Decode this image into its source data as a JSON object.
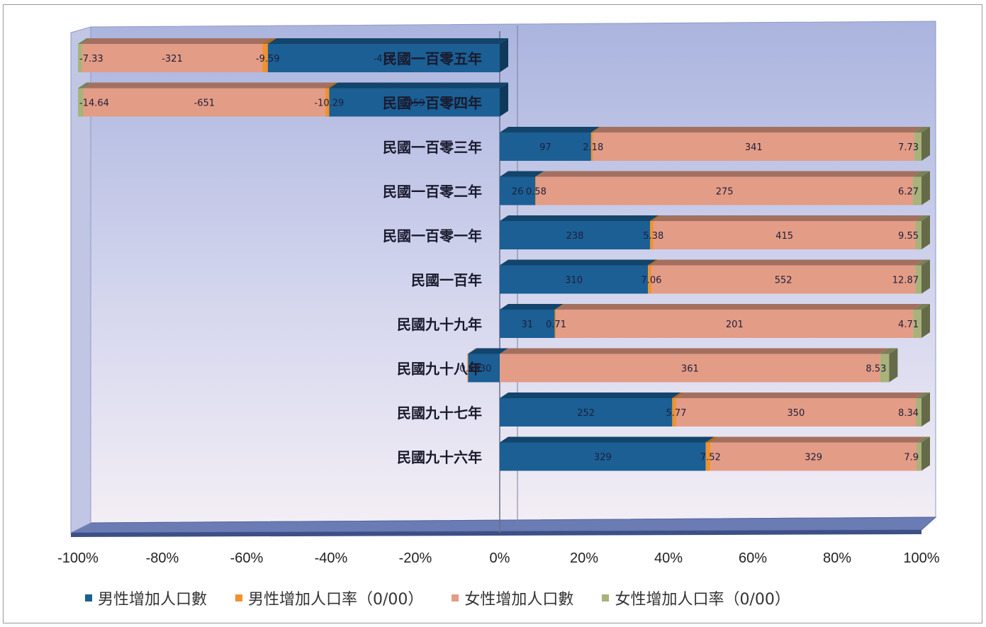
{
  "chart_data": {
    "type": "bar",
    "orientation": "horizontal",
    "stacked": "percent",
    "categories": [
      "民國一百零五年",
      "民國一百零四年",
      "民國一百零三年",
      "民國一百零二年",
      "民國一百零一年",
      "民國一百年",
      "民國九十九年",
      "民國九十八年",
      "民國九十七年",
      "民國九十六年"
    ],
    "series": [
      {
        "name": "男性增加人口數",
        "color": "#1b5f94",
        "values": [
          -413,
          -459,
          97,
          26,
          238,
          310,
          31,
          -30,
          252,
          329
        ]
      },
      {
        "name": "男性增加人口率（0/00）",
        "color": "#f0922e",
        "values": [
          -9.59,
          -10.29,
          2.18,
          0.58,
          5.38,
          7.06,
          0.71,
          -0.69,
          5.77,
          7.52
        ]
      },
      {
        "name": "女性增加人口數",
        "color": "#e39c86",
        "values": [
          -321,
          -651,
          341,
          275,
          415,
          552,
          201,
          361,
          350,
          329
        ]
      },
      {
        "name": "女性增加人口率（0/00）",
        "color": "#a9b27a",
        "values": [
          -7.33,
          -14.64,
          7.73,
          6.27,
          9.55,
          12.87,
          4.71,
          8.53,
          8.34,
          7.9
        ]
      }
    ],
    "data_labels": [
      [
        "-413",
        "-9.59",
        "-321",
        "-7.33"
      ],
      [
        "-459",
        "-10.29",
        "-651",
        "-14.64"
      ],
      [
        "97",
        "2.18",
        "341",
        "7.73"
      ],
      [
        "26",
        "0.58",
        "275",
        "6.27"
      ],
      [
        "238",
        "5.38",
        "415",
        "9.55"
      ],
      [
        "310",
        "7.06",
        "552",
        "12.87"
      ],
      [
        "31",
        "0.71",
        "201",
        "4.71"
      ],
      [
        "-30",
        "-0.69",
        "361",
        "8.53"
      ],
      [
        "252",
        "5.77",
        "350",
        "8.34"
      ],
      [
        "329",
        "7.52",
        "329",
        "7.9"
      ]
    ],
    "xticks": [
      "-100%",
      "-80%",
      "-60%",
      "-40%",
      "-20%",
      "0%",
      "20%",
      "40%",
      "60%",
      "80%",
      "100%"
    ],
    "xlim": [
      -100,
      100
    ],
    "legend_position": "bottom",
    "grid": false
  }
}
